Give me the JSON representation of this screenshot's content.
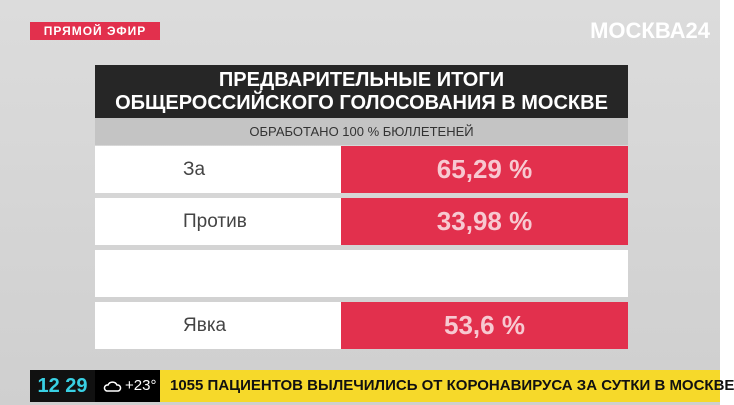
{
  "header": {
    "live_badge": "ПРЯМОЙ ЭФИР",
    "logo": "МОСКВА24"
  },
  "panel": {
    "title_lines": [
      "ПРЕДВАРИТЕЛЬНЫЕ ИТОГИ",
      "ОБЩЕРОССИЙСКОГО ГОЛОСОВАНИЯ В МОСКВЕ"
    ],
    "subtitle": "ОБРАБОТАНО 100 % БЮЛЛЕТЕНЕЙ",
    "rows": [
      [
        "За",
        "65,29 %"
      ],
      [
        "Против",
        "33,98 %"
      ],
      [
        "Явка",
        "53,6 %"
      ]
    ]
  },
  "ticker": {
    "time": "12 29",
    "weather": "+23°",
    "headline": "1055 ПАЦИЕНТОВ ВЫЛЕЧИЛИСЬ ОТ КОРОНАВИРУСА ЗА СУТКИ В МОСКВЕ"
  }
}
